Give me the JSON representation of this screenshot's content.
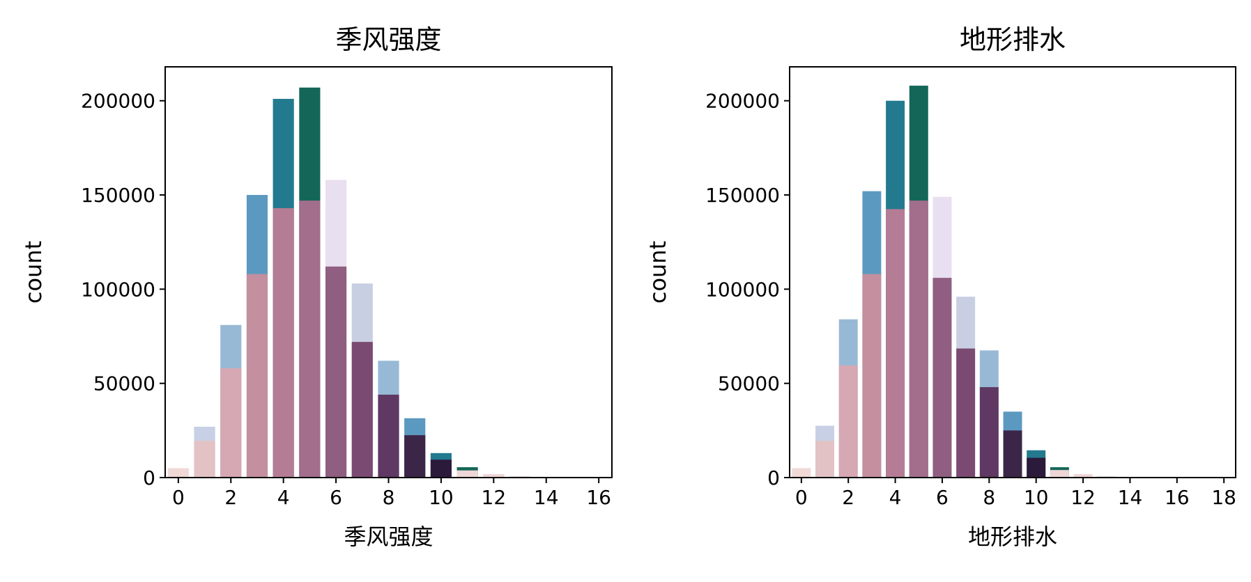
{
  "chart_data": [
    {
      "type": "bar",
      "title": "季风强度",
      "xlabel": "季风强度",
      "ylabel": "count",
      "overlay": true,
      "grid": false,
      "legend": "none",
      "xlim": [
        -0.5,
        16.5
      ],
      "ylim": [
        0,
        218000
      ],
      "x_ticks": [
        "0",
        "2",
        "4",
        "6",
        "8",
        "10",
        "12",
        "14",
        "16"
      ],
      "y_ticks": [
        "0",
        "50000",
        "100000",
        "150000",
        "200000"
      ],
      "colormap": "PuBuGn",
      "series": [
        {
          "categories": [
            0,
            1,
            2,
            3,
            4,
            5,
            6,
            7,
            8,
            9,
            10,
            11,
            12,
            13,
            14,
            15,
            16
          ],
          "values": [
            0,
            27000,
            81000,
            150000,
            201000,
            207000,
            158000,
            103000,
            62000,
            31500,
            13000,
            5500,
            1800,
            600,
            200,
            50,
            10
          ]
        },
        {
          "categories": [
            0,
            1,
            2,
            3,
            4,
            5,
            6,
            7,
            8,
            9,
            10,
            11,
            12,
            13,
            14,
            15,
            16
          ],
          "values": [
            5000,
            19500,
            58000,
            108000,
            143000,
            147000,
            112000,
            72000,
            44000,
            22500,
            9500,
            3800,
            1800,
            500,
            100,
            0,
            0
          ]
        }
      ]
    },
    {
      "type": "bar",
      "title": "地形排水",
      "xlabel": "地形排水",
      "ylabel": "count",
      "overlay": true,
      "grid": false,
      "legend": "none",
      "xlim": [
        -0.5,
        18.5
      ],
      "ylim": [
        0,
        218000
      ],
      "x_ticks": [
        "0",
        "2",
        "4",
        "6",
        "8",
        "10",
        "12",
        "14",
        "16",
        "18"
      ],
      "y_ticks": [
        "0",
        "50000",
        "100000",
        "150000",
        "200000"
      ],
      "colormap": "PuBuGn",
      "series": [
        {
          "categories": [
            0,
            1,
            2,
            3,
            4,
            5,
            6,
            7,
            8,
            9,
            10,
            11,
            12,
            13,
            14,
            15,
            16,
            17,
            18
          ],
          "values": [
            0,
            27500,
            84000,
            152000,
            200000,
            208000,
            149000,
            96000,
            67500,
            35000,
            14500,
            5500,
            1800,
            600,
            200,
            50,
            10,
            5,
            0
          ]
        },
        {
          "categories": [
            0,
            1,
            2,
            3,
            4,
            5,
            6,
            7,
            8,
            9,
            10,
            11,
            12,
            13,
            14,
            15,
            16,
            17,
            18
          ],
          "values": [
            5000,
            19500,
            59500,
            108000,
            142500,
            147000,
            106000,
            68500,
            48000,
            25000,
            10500,
            4000,
            1800,
            500,
            100,
            0,
            0,
            0,
            0
          ]
        }
      ]
    }
  ]
}
